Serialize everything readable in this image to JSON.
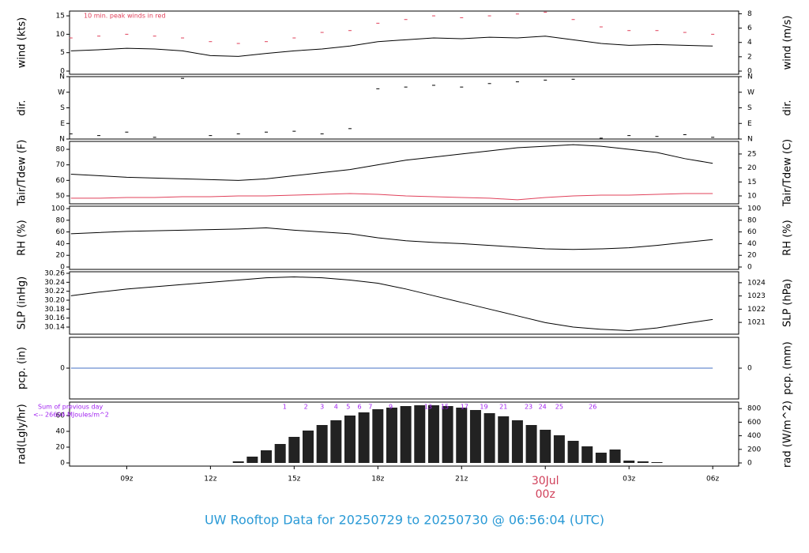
{
  "title": "UW Rooftop Data for 20250729  to  20250730 @ 06:56:04  (UTC)",
  "chart_data": [
    {
      "type": "line",
      "ylabel": "wind (kts)",
      "y2label": "wind (m/s)",
      "annotation": "10 min. peak winds in red",
      "xlim": [
        6.95,
        30.93
      ],
      "ylim": [
        -0.86,
        16.3
      ],
      "yticks": [
        0,
        5,
        10,
        15
      ],
      "y2lim": [
        -0.44,
        8.38
      ],
      "y2ticks": [
        0,
        2,
        4,
        6,
        8
      ],
      "x": [
        7,
        8,
        9,
        10,
        11,
        12,
        13,
        14,
        15,
        16,
        17,
        18,
        19,
        20,
        21,
        22,
        23,
        24,
        25,
        26,
        27,
        28,
        29,
        30
      ],
      "series": [
        {
          "mark": "line",
          "color": "#000000",
          "values": [
            5.5,
            5.8,
            6.2,
            6.0,
            5.5,
            4.2,
            4.0,
            4.8,
            5.5,
            6.0,
            6.8,
            8.0,
            8.5,
            9.0,
            8.8,
            9.2,
            9.0,
            9.5,
            8.5,
            7.5,
            7.0,
            7.2,
            7.0,
            6.8
          ]
        },
        {
          "mark": "dash",
          "color": "#e0405a",
          "values": [
            9,
            9.5,
            10,
            9.5,
            9,
            8,
            7.5,
            8,
            9,
            10.5,
            11,
            13,
            14,
            15,
            14.5,
            15,
            15.5,
            16,
            14,
            12,
            11,
            11,
            10.5,
            10
          ]
        }
      ]
    },
    {
      "type": "scatter",
      "ylabel": "dir.",
      "y2label": "dir.",
      "xlim": [
        6.95,
        30.93
      ],
      "ylim": [
        0,
        360
      ],
      "yticks": [
        {
          "value": 0,
          "label": "N"
        },
        {
          "value": 90,
          "label": "E"
        },
        {
          "value": 180,
          "label": "S"
        },
        {
          "value": 270,
          "label": "W"
        },
        {
          "value": 360,
          "label": "N"
        }
      ],
      "y2lim": [
        0,
        360
      ],
      "y2ticks": [
        {
          "value": 0,
          "label": "N"
        },
        {
          "value": 90,
          "label": "E"
        },
        {
          "value": 180,
          "label": "S"
        },
        {
          "value": 270,
          "label": "W"
        },
        {
          "value": 360,
          "label": "N"
        }
      ],
      "x": [
        7,
        8,
        9,
        10,
        11,
        12,
        13,
        14,
        15,
        16,
        17,
        18,
        19,
        20,
        21,
        22,
        23,
        24,
        25,
        26,
        27,
        28,
        29,
        30
      ],
      "series": [
        {
          "mark": "dash",
          "color": "#000000",
          "values": [
            30,
            20,
            40,
            10,
            350,
            20,
            30,
            40,
            45,
            30,
            60,
            290,
            300,
            310,
            300,
            320,
            330,
            340,
            345,
            5,
            20,
            15,
            25,
            10
          ]
        }
      ]
    },
    {
      "type": "line",
      "ylabel": "Tair/Tdew (F)",
      "y2label": "Tair/Tdew (C)",
      "xlim": [
        6.95,
        30.93
      ],
      "ylim": [
        44.9,
        85.1
      ],
      "yticks": [
        50,
        60,
        70,
        80
      ],
      "y2lim": [
        7.17,
        29.5
      ],
      "y2ticks": [
        10,
        15,
        20,
        25
      ],
      "x": [
        7,
        8,
        9,
        10,
        11,
        12,
        13,
        14,
        15,
        16,
        17,
        18,
        19,
        20,
        21,
        22,
        23,
        24,
        25,
        26,
        27,
        28,
        29,
        30
      ],
      "series": [
        {
          "mark": "line",
          "color": "#000000",
          "values": [
            64,
            63,
            62,
            61.5,
            61,
            60.5,
            60,
            61,
            63,
            65,
            67,
            70,
            73,
            75,
            77,
            79,
            81,
            82,
            83,
            82,
            80,
            78,
            74,
            71
          ]
        },
        {
          "mark": "line",
          "color": "#e0405a",
          "values": [
            48.5,
            48.5,
            49,
            49,
            49.5,
            49.5,
            50,
            50,
            50.5,
            51,
            51.5,
            51,
            50,
            49.5,
            49,
            48.5,
            47.5,
            49,
            50,
            50.5,
            50.5,
            51,
            51.5,
            51.5
          ]
        }
      ]
    },
    {
      "type": "line",
      "ylabel": "RH (%)",
      "y2label": "RH (%)",
      "xlim": [
        6.95,
        30.93
      ],
      "ylim": [
        -4.05,
        104.05
      ],
      "yticks": [
        0,
        20,
        40,
        60,
        80,
        100
      ],
      "y2lim": [
        -4.05,
        104.05
      ],
      "y2ticks": [
        0,
        20,
        40,
        60,
        80,
        100
      ],
      "x": [
        7,
        8,
        9,
        10,
        11,
        12,
        13,
        14,
        15,
        16,
        17,
        18,
        19,
        20,
        21,
        22,
        23,
        24,
        25,
        26,
        27,
        28,
        29,
        30
      ],
      "series": [
        {
          "mark": "line",
          "color": "#000000",
          "values": [
            57,
            59,
            61,
            62,
            63,
            64,
            65,
            67,
            63,
            60,
            57,
            50,
            45,
            42,
            40,
            37,
            34,
            31,
            30,
            31,
            33,
            37,
            42,
            47
          ]
        }
      ]
    },
    {
      "type": "line",
      "ylabel": "SLP (inHg)",
      "y2label": "SLP (hPa)",
      "xlim": [
        6.95,
        30.93
      ],
      "ylim": [
        30.1241,
        30.2635
      ],
      "yticks": [
        {
          "value": 30.14,
          "label": "30.14"
        },
        {
          "value": 30.16,
          "label": "30.16"
        },
        {
          "value": 30.18,
          "label": "30.18"
        },
        {
          "value": 30.2,
          "label": "30.20"
        },
        {
          "value": 30.22,
          "label": "30.22"
        },
        {
          "value": 30.24,
          "label": "30.24"
        },
        {
          "value": 30.26,
          "label": "30.26"
        }
      ],
      "y2lim": [
        1020.11,
        1024.83
      ],
      "y2ticks": [
        1021,
        1022,
        1023,
        1024
      ],
      "x": [
        7,
        8,
        9,
        10,
        11,
        12,
        13,
        14,
        15,
        16,
        17,
        18,
        19,
        20,
        21,
        22,
        23,
        24,
        25,
        26,
        27,
        28,
        29,
        30
      ],
      "series": [
        {
          "mark": "line",
          "color": "#000000",
          "values": [
            30.21,
            30.218,
            30.225,
            30.23,
            30.235,
            30.24,
            30.245,
            30.25,
            30.252,
            30.25,
            30.245,
            30.238,
            30.225,
            30.21,
            30.195,
            30.18,
            30.165,
            30.15,
            30.14,
            30.135,
            30.132,
            30.138,
            30.148,
            30.157
          ]
        }
      ]
    },
    {
      "type": "line",
      "ylabel": "pcp. (in)",
      "y2label": "pcp. (mm)",
      "xlim": [
        6.95,
        30.93
      ],
      "ylim": [
        -1,
        1
      ],
      "yticks": [
        0
      ],
      "y2lim": [
        -25.4,
        25.4
      ],
      "y2ticks": [
        0
      ],
      "x": [
        7,
        8,
        9,
        10,
        11,
        12,
        13,
        14,
        15,
        16,
        17,
        18,
        19,
        20,
        21,
        22,
        23,
        24,
        25,
        26,
        27,
        28,
        29,
        30
      ],
      "series": [
        {
          "mark": "line",
          "color": "#4472c4",
          "values": [
            0,
            0,
            0,
            0,
            0,
            0,
            0,
            0,
            0,
            0,
            0,
            0,
            0,
            0,
            0,
            0,
            0,
            0,
            0,
            0,
            0,
            0,
            0,
            0
          ]
        }
      ]
    },
    {
      "type": "bar",
      "ylabel": "rad(Lgly/hr)",
      "y2label": "rad (W/m^2)",
      "annotations": [
        "Sum of previous day",
        "<-- 26604 MJoules/m^2"
      ],
      "hour_labels": [
        {
          "x": 14.66,
          "label": "1"
        },
        {
          "x": 15.42,
          "label": "2"
        },
        {
          "x": 16.0,
          "label": "3"
        },
        {
          "x": 16.5,
          "label": "4"
        },
        {
          "x": 16.94,
          "label": "5"
        },
        {
          "x": 17.34,
          "label": "6"
        },
        {
          "x": 17.73,
          "label": "7"
        },
        {
          "x": 18.46,
          "label": "9"
        },
        {
          "x": 19.8,
          "label": "13"
        },
        {
          "x": 20.4,
          "label": "15"
        },
        {
          "x": 21.1,
          "label": "17"
        },
        {
          "x": 21.8,
          "label": "19"
        },
        {
          "x": 22.5,
          "label": "21"
        },
        {
          "x": 23.4,
          "label": "23"
        },
        {
          "x": 23.9,
          "label": "24"
        },
        {
          "x": 24.5,
          "label": "25"
        },
        {
          "x": 25.7,
          "label": "26"
        }
      ],
      "xlim": [
        6.95,
        30.93
      ],
      "ylim": [
        -4,
        77
      ],
      "yticks": [
        0,
        20,
        40,
        60
      ],
      "y2lim": [
        -46.5,
        895.5
      ],
      "y2ticks": [
        0,
        200,
        400,
        600,
        800
      ],
      "xticks": [
        {
          "value": 9,
          "label": "09z"
        },
        {
          "value": 12,
          "label": "12z"
        },
        {
          "value": 15,
          "label": "15z"
        },
        {
          "value": 18,
          "label": "18z"
        },
        {
          "value": 21,
          "label": "21z"
        },
        {
          "value": 24,
          "label": "00z"
        },
        {
          "value": 27,
          "label": "03z"
        },
        {
          "value": 30,
          "label": "06z"
        }
      ],
      "date_marker": {
        "value": 24,
        "label": "30Jul"
      },
      "x": [
        12,
        12.5,
        13,
        13.5,
        14,
        14.5,
        15,
        15.5,
        16,
        16.5,
        17,
        17.5,
        18,
        18.5,
        19,
        19.5,
        20,
        20.5,
        21,
        21.5,
        22,
        22.5,
        23,
        23.5,
        24,
        24.5,
        25,
        25.5,
        26,
        26.5,
        27,
        27.5,
        28
      ],
      "series": [
        {
          "mark": "bar",
          "color": "#222222",
          "values": [
            0,
            0,
            2,
            8,
            16,
            24,
            33,
            41,
            48,
            54,
            60,
            64,
            68,
            70,
            72,
            73,
            73,
            72,
            70,
            67,
            63,
            59,
            54,
            48,
            42,
            35,
            28,
            21,
            13,
            17,
            3,
            2,
            1
          ]
        }
      ]
    }
  ]
}
